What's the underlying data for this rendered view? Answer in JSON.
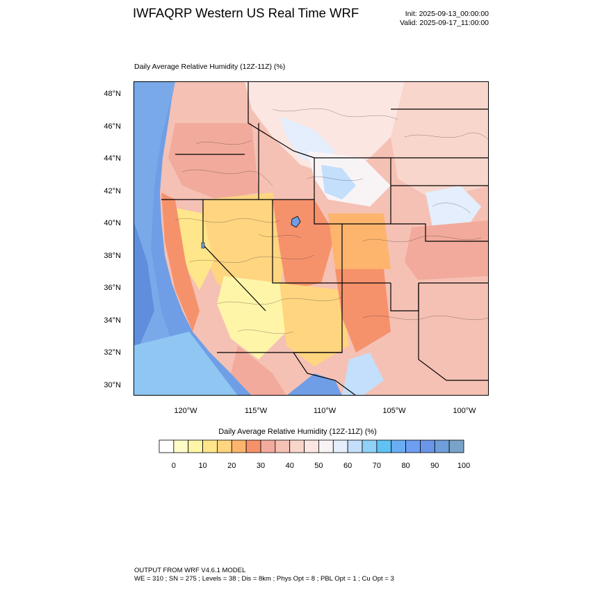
{
  "header": {
    "title": "IWFAQRP Western US Real Time WRF",
    "init": "Init: 2025-09-13_00:00:00",
    "valid": "Valid: 2025-09-17_11:00:00"
  },
  "plot": {
    "title": "Daily Average Relative Humidity (12Z-11Z)   (%)",
    "lat_labels": [
      "48°N",
      "46°N",
      "44°N",
      "42°N",
      "40°N",
      "38°N",
      "36°N",
      "34°N",
      "32°N",
      "30°N"
    ],
    "lon_labels": [
      "120°W",
      "115°W",
      "110°W",
      "105°W",
      "100°W"
    ]
  },
  "colorbar": {
    "title": "Daily Average Relative Humidity (12Z-11Z)  (%)",
    "labels": [
      "0",
      "10",
      "20",
      "30",
      "40",
      "50",
      "60",
      "70",
      "80",
      "90",
      "100"
    ],
    "colors": [
      "#ffffff",
      "#fffcc8",
      "#fff5a8",
      "#ffe68a",
      "#ffd580",
      "#fdb56e",
      "#f5926c",
      "#f2aa9c",
      "#f5c1b4",
      "#f9d6cc",
      "#fbe6e2",
      "#f8f4f6",
      "#e4eefc",
      "#c3dffc",
      "#8fd1f7",
      "#5fc2f2",
      "#6aadf3",
      "#6d9ef2",
      "#6a95e8",
      "#6f9ed8",
      "#7aa3c9"
    ]
  },
  "map": {
    "ocean_color": "#6f9ee6",
    "land_colors": [
      "#fbe6e2",
      "#f5c1b4",
      "#f2aa9c",
      "#f5926c",
      "#ffd580",
      "#ffe68a",
      "#fff5a8",
      "#e4eefc",
      "#f8f4f6"
    ]
  },
  "footer": {
    "line1": "OUTPUT FROM WRF V4.6.1 MODEL",
    "line2": "WE = 310 ; SN = 275 ; Levels = 38 ; Dis = 8km ; Phys Opt = 8 ; PBL Opt = 1 ; Cu Opt = 3"
  }
}
